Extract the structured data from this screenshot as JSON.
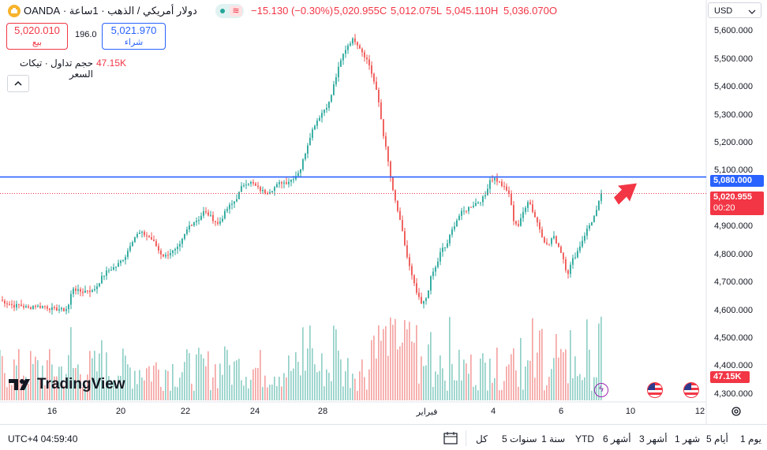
{
  "header": {
    "symbol_title": "دولار أمريكي / الذهب · 1ساعة · OANDA",
    "change": "−15.130 (−0.30%)",
    "close": "5,020.955C",
    "low": "5,012.075L",
    "high": "5,045.110H",
    "open": "5,036.070O"
  },
  "trade": {
    "sell_price": "5,020.010",
    "sell_label": "بيع",
    "spread": "196.0",
    "buy_price": "5,021.970",
    "buy_label": "شراء"
  },
  "volume_legend": {
    "label": "حجم تداول · تيكات السعر",
    "value": "47.15K"
  },
  "currency": "USD",
  "price_axis_labels": [
    "5,600.000",
    "5,500.000",
    "5,400.000",
    "5,300.000",
    "5,200.000",
    "5,100.000",
    "4,900.000",
    "4,800.000",
    "4,700.000",
    "4,600.000",
    "4,500.000",
    "4,400.000",
    "4,300.000"
  ],
  "hline_label": "5,080.000",
  "last_price_label": "5,020.955",
  "countdown": "00:20",
  "volume_tag": "47.15K",
  "x_labels": [
    "16",
    "20",
    "22",
    "24",
    "28",
    "فبراير",
    "4",
    "6",
    "10",
    "12"
  ],
  "brand": "TradingView",
  "timezone": "UTC+4 04:59:40",
  "ranges": [
    "يوم 1",
    "أيام 5",
    "شهر 1",
    "أشهر 3",
    "أشهر 6",
    "YTD",
    "سنة 1",
    "سنوات 5",
    "كل"
  ],
  "colors": {
    "up": "#26a69a",
    "down": "#ef5350",
    "hline": "#2962ff",
    "arrow": "#f23645",
    "vol_up": "#8fcfc6",
    "vol_down": "#f4a3a1"
  },
  "chart_data": {
    "type": "candlestick",
    "instrument": "XAU/USD",
    "timeframe": "1h",
    "ylim": [
      4280,
      5680
    ],
    "horizontal_line": 5080,
    "last_price": 5020.955,
    "series": [
      {
        "name": "price",
        "close_path": [
          4640,
          4632,
          4625,
          4618,
          4622,
          4615,
          4610,
          4620,
          4615,
          4618,
          4612,
          4605,
          4608,
          4603,
          4610,
          4685,
          4672,
          4668,
          4676,
          4670,
          4690,
          4720,
          4740,
          4752,
          4760,
          4780,
          4800,
          4845,
          4870,
          4880,
          4872,
          4862,
          4840,
          4808,
          4795,
          4810,
          4815,
          4830,
          4870,
          4905,
          4920,
          4930,
          4955,
          4945,
          4928,
          4910,
          4940,
          4970,
          4985,
          5010,
          5050,
          5062,
          5058,
          5042,
          5030,
          5025,
          5035,
          5048,
          5062,
          5060,
          5070,
          5085,
          5110,
          5170,
          5230,
          5272,
          5300,
          5325,
          5350,
          5420,
          5480,
          5530,
          5560,
          5575,
          5550,
          5520,
          5490,
          5430,
          5360,
          5240,
          5140,
          5030,
          4960,
          4880,
          4790,
          4720,
          4660,
          4620,
          4650,
          4730,
          4760,
          4820,
          4830,
          4880,
          4920,
          4950,
          4960,
          4975,
          4985,
          4995,
          5010,
          5070,
          5075,
          5060,
          5040,
          5020,
          4920,
          4905,
          4960,
          5000,
          4950,
          4910,
          4860,
          4830,
          4870,
          4840,
          4800,
          4730,
          4780,
          4810,
          4850,
          4890,
          4920,
          4955,
          5020
        ]
      }
    ],
    "volume_series": [
      {
        "name": "تيكات السعر",
        "last": "47.15K"
      }
    ]
  }
}
